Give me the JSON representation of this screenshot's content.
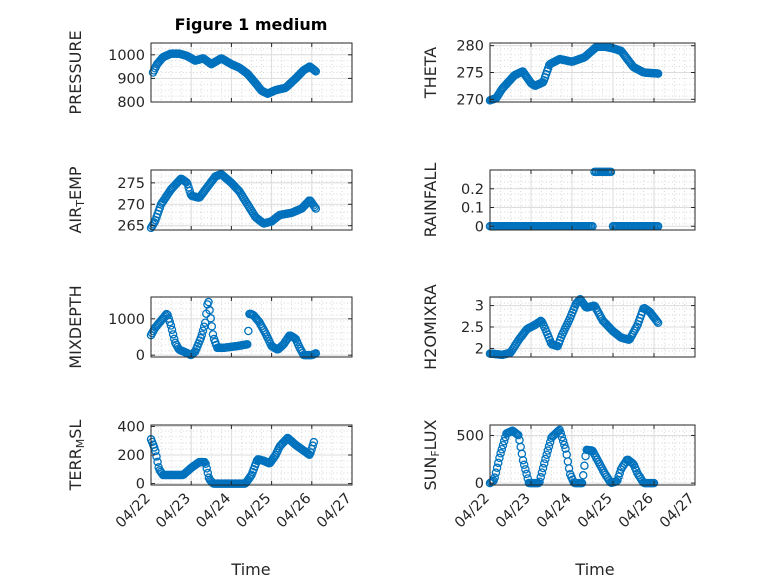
{
  "figure": {
    "title": "Figure 1 medium",
    "xlabel": "Time",
    "x_tick_labels": [
      "04/22",
      "04/23",
      "04/24",
      "04/25",
      "04/26",
      "04/27"
    ],
    "marker_color": "#0072BD",
    "grid": true,
    "minor_grid": true
  },
  "chart_data": [
    {
      "type": "scatter",
      "ylabel_parts": [
        "PRESSURE"
      ],
      "ylim": [
        800,
        1050
      ],
      "yticks": [
        800,
        900,
        1000
      ],
      "x_domain": [
        0,
        5
      ],
      "x_ticks": [
        0,
        1,
        2,
        3,
        4,
        5
      ],
      "curve": [
        [
          0.05,
          925
        ],
        [
          0.15,
          960
        ],
        [
          0.3,
          990
        ],
        [
          0.5,
          1005
        ],
        [
          0.7,
          1005
        ],
        [
          0.9,
          995
        ],
        [
          1.1,
          975
        ],
        [
          1.3,
          985
        ],
        [
          1.5,
          960
        ],
        [
          1.75,
          985
        ],
        [
          2.0,
          960
        ],
        [
          2.2,
          945
        ],
        [
          2.4,
          920
        ],
        [
          2.6,
          880
        ],
        [
          2.75,
          848
        ],
        [
          2.9,
          835
        ],
        [
          3.1,
          850
        ],
        [
          3.35,
          860
        ],
        [
          3.6,
          900
        ],
        [
          3.8,
          935
        ],
        [
          3.95,
          950
        ],
        [
          4.1,
          930
        ]
      ],
      "n": 160
    },
    {
      "type": "scatter",
      "ylabel_parts": [
        "THETA"
      ],
      "ylim": [
        269.5,
        280.5
      ],
      "yticks": [
        270,
        275,
        280
      ],
      "x_domain": [
        0,
        5
      ],
      "x_ticks": [
        0,
        1,
        2,
        3,
        4,
        5
      ],
      "curve": [
        [
          0.0,
          269.8
        ],
        [
          0.15,
          270.2
        ],
        [
          0.3,
          272
        ],
        [
          0.6,
          274.5
        ],
        [
          0.8,
          275.2
        ],
        [
          1.0,
          273
        ],
        [
          1.1,
          272.5
        ],
        [
          1.3,
          273.2
        ],
        [
          1.45,
          276.5
        ],
        [
          1.7,
          277.5
        ],
        [
          2.0,
          277
        ],
        [
          2.3,
          277.8
        ],
        [
          2.6,
          279.8
        ],
        [
          2.8,
          279.8
        ],
        [
          3.0,
          279.5
        ],
        [
          3.2,
          279
        ],
        [
          3.35,
          277.5
        ],
        [
          3.5,
          276
        ],
        [
          3.75,
          275
        ],
        [
          4.1,
          274.8
        ]
      ],
      "n": 160
    },
    {
      "type": "scatter",
      "ylabel_parts": [
        "AIR",
        "T",
        "EMP"
      ],
      "ylim": [
        264,
        278
      ],
      "yticks": [
        265,
        270,
        275
      ],
      "x_domain": [
        0,
        5
      ],
      "x_ticks": [
        0,
        1,
        2,
        3,
        4,
        5
      ],
      "curve": [
        [
          0.0,
          264.5
        ],
        [
          0.1,
          266
        ],
        [
          0.25,
          270
        ],
        [
          0.5,
          273.5
        ],
        [
          0.75,
          276
        ],
        [
          0.9,
          275
        ],
        [
          1.0,
          272
        ],
        [
          1.2,
          271.5
        ],
        [
          1.4,
          274
        ],
        [
          1.6,
          276.5
        ],
        [
          1.75,
          277
        ],
        [
          2.0,
          275
        ],
        [
          2.2,
          273
        ],
        [
          2.4,
          270
        ],
        [
          2.6,
          267
        ],
        [
          2.8,
          265.5
        ],
        [
          3.0,
          266
        ],
        [
          3.2,
          267.5
        ],
        [
          3.5,
          268
        ],
        [
          3.75,
          269
        ],
        [
          3.95,
          271
        ],
        [
          4.1,
          269
        ]
      ],
      "n": 150
    },
    {
      "type": "scatter",
      "ylabel_parts": [
        "RAINFALL"
      ],
      "ylim": [
        -0.02,
        0.3
      ],
      "yticks": [
        0,
        0.1,
        0.2
      ],
      "x_domain": [
        0,
        5
      ],
      "x_ticks": [
        0,
        1,
        2,
        3,
        4,
        5
      ],
      "segments": [
        {
          "x": [
            0.0,
            2.5
          ],
          "y": 0,
          "n": 70
        },
        {
          "x": [
            2.55,
            2.95
          ],
          "y": 0.29,
          "n": 12
        },
        {
          "x": [
            3.0,
            4.1
          ],
          "y": 0,
          "n": 34
        }
      ]
    },
    {
      "type": "scatter",
      "ylabel_parts": [
        "MIXDEPTH"
      ],
      "ylim": [
        -50,
        1600
      ],
      "yticks": [
        0,
        1000
      ],
      "x_domain": [
        0,
        5
      ],
      "x_ticks": [
        0,
        1,
        2,
        3,
        4,
        5
      ],
      "curve": [
        [
          0.0,
          550
        ],
        [
          0.1,
          750
        ],
        [
          0.25,
          950
        ],
        [
          0.4,
          1150
        ],
        [
          0.5,
          800
        ],
        [
          0.6,
          350
        ],
        [
          0.7,
          150
        ],
        [
          0.85,
          80
        ],
        [
          1.0,
          0
        ],
        [
          1.1,
          100
        ],
        [
          1.25,
          500
        ],
        [
          1.35,
          900
        ],
        [
          1.42,
          1550
        ],
        [
          1.5,
          900
        ],
        [
          1.55,
          500
        ],
        [
          1.65,
          200
        ],
        [
          1.8,
          200
        ],
        [
          2.0,
          230
        ],
        [
          2.15,
          250
        ],
        [
          2.3,
          280
        ],
        [
          2.4,
          300
        ],
        [
          2.45,
          1150
        ],
        [
          2.55,
          1100
        ],
        [
          2.7,
          900
        ],
        [
          2.85,
          600
        ],
        [
          3.0,
          250
        ],
        [
          3.15,
          150
        ],
        [
          3.3,
          300
        ],
        [
          3.45,
          550
        ],
        [
          3.6,
          450
        ],
        [
          3.7,
          200
        ],
        [
          3.8,
          0
        ],
        [
          4.0,
          0
        ],
        [
          4.1,
          50
        ]
      ],
      "n": 150
    },
    {
      "type": "scatter",
      "ylabel_parts": [
        "H2OMIXRA"
      ],
      "ylim": [
        1.8,
        3.2
      ],
      "yticks": [
        2,
        2.5,
        3
      ],
      "x_domain": [
        0,
        5
      ],
      "x_ticks": [
        0,
        1,
        2,
        3,
        4,
        5
      ],
      "curve": [
        [
          0.0,
          1.88
        ],
        [
          0.3,
          1.85
        ],
        [
          0.5,
          1.9
        ],
        [
          0.7,
          2.2
        ],
        [
          0.9,
          2.45
        ],
        [
          1.1,
          2.55
        ],
        [
          1.25,
          2.65
        ],
        [
          1.35,
          2.45
        ],
        [
          1.5,
          2.1
        ],
        [
          1.65,
          2.05
        ],
        [
          1.75,
          2.3
        ],
        [
          1.95,
          2.7
        ],
        [
          2.1,
          3.05
        ],
        [
          2.2,
          3.15
        ],
        [
          2.35,
          2.95
        ],
        [
          2.55,
          3.0
        ],
        [
          2.75,
          2.65
        ],
        [
          3.0,
          2.4
        ],
        [
          3.2,
          2.25
        ],
        [
          3.4,
          2.2
        ],
        [
          3.6,
          2.55
        ],
        [
          3.75,
          2.95
        ],
        [
          3.9,
          2.85
        ],
        [
          4.1,
          2.6
        ]
      ],
      "n": 150
    },
    {
      "type": "scatter",
      "ylabel_parts": [
        "TERR",
        "M",
        "SL"
      ],
      "ylim": [
        -10,
        410
      ],
      "yticks": [
        0,
        200,
        400
      ],
      "x_domain": [
        0,
        5
      ],
      "x_ticks": [
        0,
        1,
        2,
        3,
        4,
        5
      ],
      "curve": [
        [
          0.0,
          310
        ],
        [
          0.1,
          240
        ],
        [
          0.2,
          100
        ],
        [
          0.3,
          60
        ],
        [
          0.6,
          60
        ],
        [
          0.8,
          60
        ],
        [
          1.0,
          110
        ],
        [
          1.2,
          150
        ],
        [
          1.35,
          150
        ],
        [
          1.45,
          30
        ],
        [
          1.55,
          0
        ],
        [
          2.0,
          0
        ],
        [
          2.35,
          0
        ],
        [
          2.5,
          60
        ],
        [
          2.65,
          170
        ],
        [
          2.8,
          160
        ],
        [
          2.95,
          140
        ],
        [
          3.1,
          200
        ],
        [
          3.2,
          260
        ],
        [
          3.4,
          320
        ],
        [
          3.6,
          270
        ],
        [
          3.8,
          230
        ],
        [
          3.95,
          200
        ],
        [
          4.05,
          290
        ]
      ],
      "n": 150
    },
    {
      "type": "scatter",
      "ylabel_parts": [
        "SUN",
        "F",
        "LUX"
      ],
      "ylim": [
        -20,
        610
      ],
      "yticks": [
        0,
        500
      ],
      "x_domain": [
        0,
        5
      ],
      "x_ticks": [
        0,
        1,
        2,
        3,
        4,
        5
      ],
      "curve": [
        [
          0.0,
          0
        ],
        [
          0.1,
          30
        ],
        [
          0.25,
          300
        ],
        [
          0.4,
          520
        ],
        [
          0.55,
          550
        ],
        [
          0.7,
          500
        ],
        [
          0.8,
          250
        ],
        [
          0.95,
          0
        ],
        [
          1.2,
          0
        ],
        [
          1.35,
          250
        ],
        [
          1.5,
          480
        ],
        [
          1.7,
          560
        ],
        [
          1.85,
          350
        ],
        [
          1.95,
          100
        ],
        [
          2.05,
          0
        ],
        [
          2.25,
          0
        ],
        [
          2.35,
          350
        ],
        [
          2.5,
          340
        ],
        [
          2.65,
          220
        ],
        [
          2.8,
          100
        ],
        [
          2.95,
          0
        ],
        [
          3.1,
          20
        ],
        [
          3.2,
          150
        ],
        [
          3.35,
          250
        ],
        [
          3.5,
          200
        ],
        [
          3.6,
          100
        ],
        [
          3.75,
          0
        ],
        [
          4.0,
          0
        ]
      ],
      "n": 140
    }
  ]
}
